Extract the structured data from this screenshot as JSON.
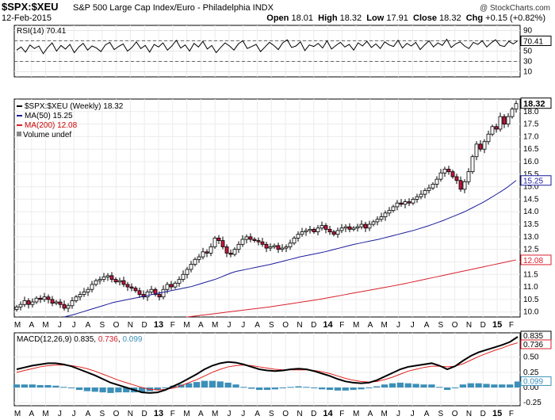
{
  "header": {
    "symbol": "$SPX:$XEU",
    "description": "S&P 500 Large Cap Index/Euro - Philadelphia  INDX",
    "watermark": "@ StockCharts.com",
    "date": "12-Feb-2015",
    "open_label": "Open",
    "open": "18.01",
    "high_label": "High",
    "high": "18.32",
    "low_label": "Low",
    "low": "17.91",
    "close_label": "Close",
    "close": "18.32",
    "chg_label": "Chg",
    "chg": "+0.15 (+0.82%)"
  },
  "chart_data": [
    {
      "type": "line",
      "name": "rsi",
      "legend": "RSI(14) 70.41",
      "ylim": [
        0,
        100
      ],
      "yticks": [
        10,
        30,
        50,
        70,
        90
      ],
      "reference_lines": [
        30,
        70
      ],
      "last_value_label": "70.41",
      "values": [
        52,
        58,
        48,
        62,
        55,
        60,
        45,
        57,
        66,
        50,
        61,
        54,
        63,
        47,
        58,
        65,
        52,
        60,
        56,
        49,
        62,
        67,
        53,
        59,
        64,
        50,
        57,
        68,
        55,
        61,
        48,
        63,
        58,
        66,
        52,
        60,
        71,
        56,
        62,
        50,
        65,
        58,
        69,
        54,
        61,
        47,
        57,
        66,
        60,
        52,
        64,
        70,
        55,
        59,
        63,
        49,
        58,
        67,
        61,
        53,
        66,
        72,
        57,
        60,
        68,
        51,
        62,
        59,
        65,
        56,
        70,
        54,
        61,
        67,
        58,
        63,
        52,
        66,
        60,
        69,
        57,
        64,
        55,
        68,
        62,
        59,
        71,
        56,
        65,
        60,
        67,
        53,
        62,
        70,
        58,
        66,
        61,
        73,
        57,
        64,
        68,
        60,
        55,
        67,
        63,
        70,
        58,
        66,
        72,
        61,
        59,
        69,
        64,
        70
      ]
    },
    {
      "type": "ohlc",
      "name": "price",
      "legend": [
        "$SPX:$XEU (Weekly) 18.32",
        "MA(50) 15.25",
        "MA(200) 12.08",
        "Volume undef"
      ],
      "ylim": [
        9.8,
        18.5
      ],
      "yticks": [
        10.0,
        10.5,
        11.0,
        11.5,
        12.0,
        12.5,
        13.0,
        13.5,
        14.0,
        14.5,
        15.0,
        15.5,
        16.0,
        16.5,
        17.0,
        17.5,
        18.0
      ],
      "last_labels": {
        "price": "18.32",
        "ma50": "15.25",
        "ma200": "12.08"
      },
      "x_labels": [
        "M",
        "A",
        "M",
        "J",
        "J",
        "A",
        "S",
        "O",
        "N",
        "D",
        "13",
        "F",
        "M",
        "A",
        "M",
        "J",
        "J",
        "A",
        "S",
        "O",
        "N",
        "D",
        "14",
        "F",
        "M",
        "A",
        "M",
        "J",
        "J",
        "A",
        "S",
        "O",
        "N",
        "D",
        "15",
        "F"
      ],
      "closes": [
        10.2,
        10.3,
        10.45,
        10.3,
        10.4,
        10.55,
        10.5,
        10.6,
        10.5,
        10.35,
        10.4,
        10.3,
        10.15,
        10.25,
        10.45,
        10.6,
        10.7,
        10.8,
        10.9,
        11.1,
        11.25,
        11.3,
        11.4,
        11.45,
        11.3,
        11.2,
        11.25,
        11.1,
        11.0,
        10.95,
        10.85,
        10.7,
        10.6,
        10.8,
        10.9,
        10.7,
        10.6,
        10.9,
        11.1,
        11.0,
        11.15,
        11.3,
        11.5,
        11.7,
        11.9,
        12.1,
        12.2,
        12.4,
        12.35,
        12.6,
        12.95,
        12.85,
        12.6,
        12.35,
        12.3,
        12.5,
        12.7,
        12.9,
        13.0,
        12.9,
        12.85,
        12.8,
        12.7,
        12.55,
        12.6,
        12.65,
        12.5,
        12.55,
        12.6,
        12.75,
        12.95,
        13.1,
        13.2,
        13.25,
        13.3,
        13.2,
        13.35,
        13.45,
        13.3,
        13.2,
        13.1,
        13.25,
        13.35,
        13.4,
        13.3,
        13.35,
        13.4,
        13.5,
        13.35,
        13.5,
        13.6,
        13.7,
        13.8,
        13.95,
        14.05,
        14.2,
        14.35,
        14.3,
        14.4,
        14.35,
        14.5,
        14.6,
        14.7,
        14.85,
        14.95,
        15.1,
        15.3,
        15.55,
        15.7,
        15.6,
        15.4,
        15.25,
        14.9,
        15.2,
        15.6,
        16.2,
        16.7,
        16.5,
        16.8,
        17.1,
        17.4,
        17.3,
        17.8,
        17.5,
        17.8,
        18.1,
        18.32
      ],
      "ma50": [
        9.8,
        9.85,
        9.9,
        9.96,
        10.02,
        10.08,
        10.14,
        10.2,
        10.26,
        10.32,
        10.38,
        10.42,
        10.46,
        10.5,
        10.54,
        10.58,
        10.62,
        10.66,
        10.7,
        10.74,
        10.78,
        10.82,
        10.86,
        10.9,
        10.94,
        10.98,
        11.02,
        11.08,
        11.14,
        11.2,
        11.26,
        11.32,
        11.4,
        11.48,
        11.56,
        11.62,
        11.66,
        11.7,
        11.74,
        11.78,
        11.82,
        11.86,
        11.9,
        11.95,
        12.0,
        12.05,
        12.1,
        12.15,
        12.2,
        12.24,
        12.28,
        12.32,
        12.36,
        12.4,
        12.45,
        12.5,
        12.55,
        12.6,
        12.65,
        12.7,
        12.74,
        12.78,
        12.82,
        12.86,
        12.9,
        12.95,
        13.0,
        13.05,
        13.1,
        13.15,
        13.2,
        13.25,
        13.31,
        13.37,
        13.43,
        13.5,
        13.57,
        13.64,
        13.72,
        13.8,
        13.88,
        13.96,
        14.05,
        14.15,
        14.25,
        14.35,
        14.46,
        14.58,
        14.7,
        14.82,
        14.95,
        15.1,
        15.25
      ],
      "ma200": [
        9.8,
        9.84,
        9.88,
        9.92,
        9.96,
        10.0,
        10.04,
        10.08,
        10.12,
        10.16,
        10.2,
        10.25,
        10.3,
        10.35,
        10.4,
        10.45,
        10.5,
        10.56,
        10.62,
        10.68,
        10.74,
        10.8,
        10.86,
        10.92,
        10.98,
        11.04,
        11.1,
        11.17,
        11.24,
        11.31,
        11.38,
        11.45,
        11.52,
        11.59,
        11.66,
        11.73,
        11.8,
        11.87,
        11.94,
        12.01,
        12.08
      ]
    },
    {
      "type": "line",
      "name": "macd",
      "legend": "MACD(12,26,9) 0.835, 0.736, 0.099",
      "legend_values": {
        "macd": "0.835",
        "signal": "0.736",
        "histogram": "0.099"
      },
      "ylim": [
        -0.3,
        0.9
      ],
      "yticks": [
        -0.25,
        0.0,
        0.25,
        0.5
      ],
      "last_labels": {
        "macd": "0.835",
        "signal": "0.736",
        "histogram": "0.099"
      },
      "x_labels": [
        "M",
        "A",
        "M",
        "J",
        "J",
        "A",
        "S",
        "O",
        "N",
        "D",
        "13",
        "F",
        "M",
        "A",
        "M",
        "J",
        "J",
        "A",
        "S",
        "O",
        "N",
        "D",
        "14",
        "F",
        "M",
        "A",
        "M",
        "J",
        "J",
        "A",
        "S",
        "O",
        "N",
        "D",
        "15",
        "F"
      ],
      "macd": [
        0.3,
        0.33,
        0.36,
        0.38,
        0.4,
        0.4,
        0.38,
        0.35,
        0.3,
        0.25,
        0.2,
        0.14,
        0.08,
        0.04,
        0.0,
        -0.04,
        -0.08,
        -0.09,
        -0.08,
        -0.04,
        0.02,
        0.08,
        0.15,
        0.22,
        0.3,
        0.36,
        0.4,
        0.42,
        0.41,
        0.38,
        0.34,
        0.3,
        0.28,
        0.27,
        0.28,
        0.3,
        0.31,
        0.3,
        0.27,
        0.23,
        0.19,
        0.14,
        0.1,
        0.08,
        0.07,
        0.08,
        0.12,
        0.18,
        0.24,
        0.3,
        0.34,
        0.36,
        0.38,
        0.4,
        0.36,
        0.3,
        0.35,
        0.44,
        0.52,
        0.58,
        0.62,
        0.66,
        0.7,
        0.75,
        0.835
      ],
      "signal": [
        0.25,
        0.28,
        0.31,
        0.34,
        0.36,
        0.37,
        0.37,
        0.36,
        0.34,
        0.31,
        0.27,
        0.22,
        0.17,
        0.12,
        0.08,
        0.04,
        0.0,
        -0.03,
        -0.04,
        -0.03,
        -0.01,
        0.03,
        0.08,
        0.13,
        0.19,
        0.25,
        0.3,
        0.34,
        0.36,
        0.37,
        0.36,
        0.34,
        0.32,
        0.3,
        0.29,
        0.29,
        0.29,
        0.29,
        0.28,
        0.26,
        0.23,
        0.19,
        0.15,
        0.12,
        0.1,
        0.09,
        0.1,
        0.13,
        0.17,
        0.22,
        0.27,
        0.3,
        0.33,
        0.35,
        0.35,
        0.34,
        0.35,
        0.39,
        0.45,
        0.51,
        0.56,
        0.61,
        0.65,
        0.7,
        0.736
      ],
      "histogram": [
        0.05,
        0.05,
        0.05,
        0.04,
        0.04,
        0.03,
        0.01,
        -0.01,
        -0.04,
        -0.06,
        -0.07,
        -0.08,
        -0.09,
        -0.08,
        -0.08,
        -0.08,
        -0.08,
        -0.06,
        -0.04,
        -0.01,
        0.03,
        0.05,
        0.07,
        0.09,
        0.11,
        0.11,
        0.1,
        0.08,
        0.05,
        0.01,
        -0.02,
        -0.04,
        -0.04,
        -0.03,
        -0.01,
        0.01,
        0.02,
        0.01,
        -0.01,
        -0.03,
        -0.04,
        -0.05,
        -0.05,
        -0.04,
        -0.03,
        -0.01,
        0.02,
        0.05,
        0.07,
        0.08,
        0.07,
        0.06,
        0.05,
        0.05,
        0.01,
        -0.04,
        0.0,
        0.05,
        0.07,
        0.07,
        0.06,
        0.05,
        0.05,
        0.05,
        0.099
      ]
    }
  ]
}
